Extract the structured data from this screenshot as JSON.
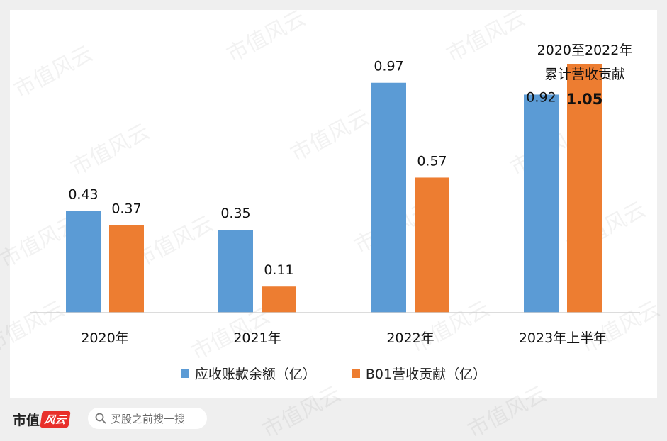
{
  "chart_data": {
    "type": "bar",
    "categories": [
      "2020年",
      "2021年",
      "2022年",
      "2023年上半年"
    ],
    "series": [
      {
        "name": "应收账款余额（亿）",
        "color": "#5b9bd5",
        "values": [
          0.43,
          0.35,
          0.97,
          0.92
        ],
        "labels": [
          "0.43",
          "0.35",
          "0.97",
          "0.92"
        ]
      },
      {
        "name": "B01营收贡献（亿）",
        "color": "#ed7d31",
        "values": [
          0.37,
          0.11,
          0.57,
          1.05
        ],
        "labels": [
          "0.37",
          "0.11",
          "0.57",
          "1.05"
        ]
      }
    ],
    "annotation": {
      "line1": "2020至2022年",
      "line2": "累计营收贡献"
    },
    "ylim": [
      0,
      1.05
    ],
    "grid": false,
    "legend_position": "bottom"
  },
  "watermark": {
    "text": "市值风云"
  },
  "footer": {
    "brand": "市值",
    "brand_seal": "风云",
    "search_icon": "search-icon",
    "search_placeholder": "买股之前搜一搜"
  }
}
